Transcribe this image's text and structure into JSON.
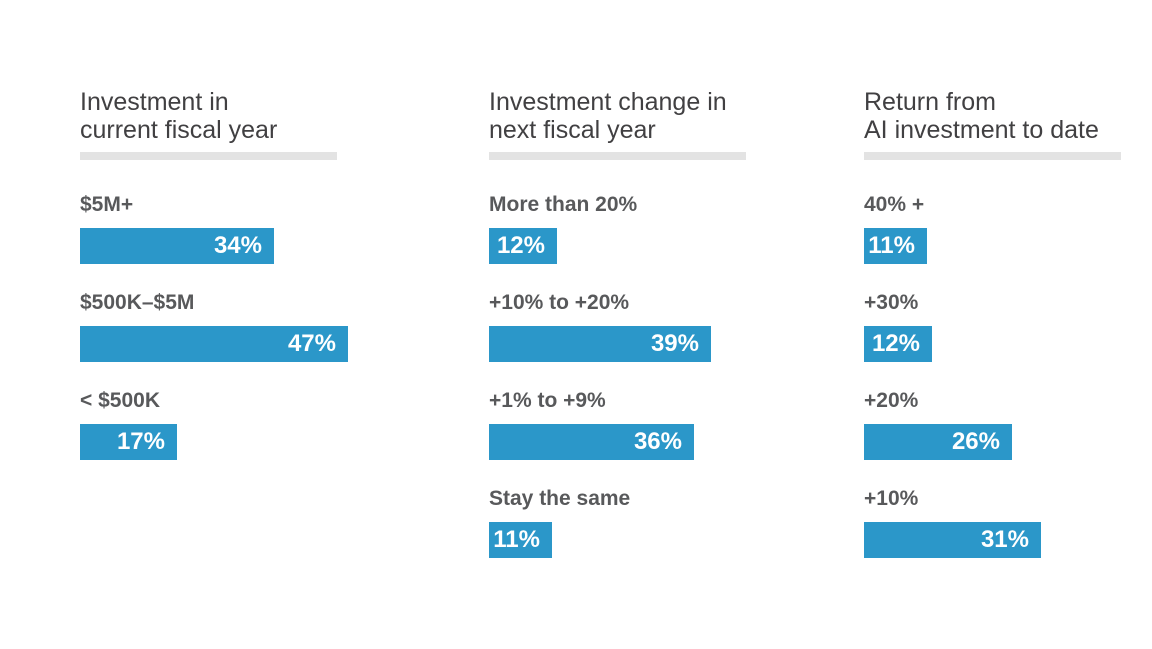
{
  "colors": {
    "bar": "#2b97c9",
    "title_text": "#414042",
    "category_text": "#58595b",
    "value_text": "#ffffff",
    "rule": "#e3e3e3",
    "background": "#ffffff"
  },
  "chart_data": [
    {
      "type": "bar",
      "orientation": "horizontal",
      "title": "Investment in current fiscal year",
      "title_lines": [
        "Investment in",
        "current fiscal year"
      ],
      "categories": [
        "$5M+",
        "$500K–$5M",
        "< $500K"
      ],
      "values": [
        34,
        47,
        17
      ],
      "value_labels": [
        "34%",
        "47%",
        "17%"
      ],
      "unit": "%",
      "xlim": [
        0,
        100
      ],
      "grid": false,
      "legend": false
    },
    {
      "type": "bar",
      "orientation": "horizontal",
      "title": "Investment change in next fiscal year",
      "title_lines": [
        "Investment change in",
        "next fiscal year"
      ],
      "categories": [
        "More than 20%",
        "+10% to +20%",
        "+1% to +9%",
        "Stay the same"
      ],
      "values": [
        12,
        39,
        36,
        11
      ],
      "value_labels": [
        "12%",
        "39%",
        "36%",
        "11%"
      ],
      "unit": "%",
      "xlim": [
        0,
        100
      ],
      "grid": false,
      "legend": false
    },
    {
      "type": "bar",
      "orientation": "horizontal",
      "title": "Return from AI investment to date",
      "title_lines": [
        "Return from",
        "AI investment to date"
      ],
      "categories": [
        "40% +",
        "+30%",
        "+20%",
        "+10%"
      ],
      "values": [
        11,
        12,
        26,
        31
      ],
      "value_labels": [
        "11%",
        "12%",
        "26%",
        "31%"
      ],
      "unit": "%",
      "xlim": [
        0,
        100
      ],
      "grid": false,
      "legend": false
    }
  ]
}
